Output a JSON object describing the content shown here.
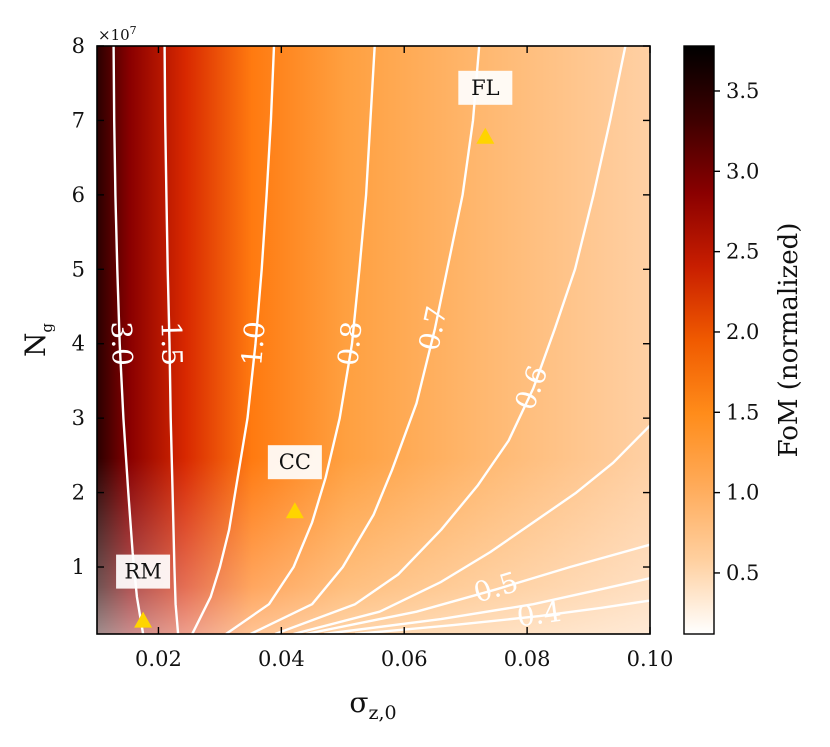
{
  "chart_data": {
    "type": "contour",
    "xlabel": "σ_{z,0}",
    "ylabel": "N_g",
    "y_multiplier_label": "×10^7",
    "xlim": [
      0.01,
      0.1
    ],
    "ylim": [
      0.1,
      8.0
    ],
    "x_ticks": [
      0.02,
      0.04,
      0.06,
      0.08,
      0.1
    ],
    "x_tick_labels": [
      "0.02",
      "0.04",
      "0.06",
      "0.08",
      "0.10"
    ],
    "y_ticks": [
      1,
      2,
      3,
      4,
      5,
      6,
      7,
      8
    ],
    "y_tick_labels": [
      "1",
      "2",
      "3",
      "4",
      "5",
      "6",
      "7",
      "8"
    ],
    "colorbar": {
      "label": "FoM (normalized)",
      "range": [
        0.12,
        3.78
      ],
      "ticks": [
        0.5,
        1.0,
        1.5,
        2.0,
        2.5,
        3.0,
        3.5
      ],
      "tick_labels": [
        "0.5",
        "1.0",
        "1.5",
        "2.0",
        "2.5",
        "3.0",
        "3.5"
      ],
      "colormap": [
        "#ffffff",
        "#ffd0a0",
        "#ffab5a",
        "#ff8c1a",
        "#f05a00",
        "#c81e00",
        "#8a0000",
        "#3d0000",
        "#000000"
      ]
    },
    "contours": [
      {
        "level": 3.0,
        "label": "3.0",
        "points": [
          [
            0.0175,
            0.1
          ],
          [
            0.0165,
            0.6
          ],
          [
            0.0158,
            1.2
          ],
          [
            0.0151,
            2.0
          ],
          [
            0.0143,
            3.0
          ],
          [
            0.0137,
            4.0
          ],
          [
            0.0133,
            5.0
          ],
          [
            0.013,
            6.0
          ],
          [
            0.0128,
            7.0
          ],
          [
            0.0127,
            8.0
          ]
        ]
      },
      {
        "level": 1.5,
        "label": "1.5",
        "points": [
          [
            0.0232,
            0.1
          ],
          [
            0.0228,
            0.5
          ],
          [
            0.0226,
            1.0
          ],
          [
            0.0223,
            2.0
          ],
          [
            0.022,
            3.0
          ],
          [
            0.0218,
            4.0
          ],
          [
            0.0215,
            5.0
          ],
          [
            0.0213,
            6.0
          ],
          [
            0.0211,
            7.0
          ],
          [
            0.021,
            8.0
          ]
        ]
      },
      {
        "level": 1.0,
        "label": "1.0",
        "points": [
          [
            0.0255,
            0.1
          ],
          [
            0.0285,
            0.6
          ],
          [
            0.03,
            1.0
          ],
          [
            0.0315,
            1.5
          ],
          [
            0.0325,
            2.0
          ],
          [
            0.0345,
            3.0
          ],
          [
            0.0358,
            4.0
          ],
          [
            0.0368,
            5.0
          ],
          [
            0.0376,
            6.0
          ],
          [
            0.0383,
            7.0
          ],
          [
            0.0388,
            8.0
          ]
        ]
      },
      {
        "level": 0.8,
        "label": "0.8",
        "points": [
          [
            0.031,
            0.1
          ],
          [
            0.038,
            0.5
          ],
          [
            0.042,
            1.0
          ],
          [
            0.045,
            1.6
          ],
          [
            0.0472,
            2.2
          ],
          [
            0.0495,
            3.0
          ],
          [
            0.0515,
            4.0
          ],
          [
            0.0527,
            5.0
          ],
          [
            0.0538,
            6.0
          ],
          [
            0.0545,
            7.0
          ],
          [
            0.0552,
            8.0
          ]
        ]
      },
      {
        "level": 0.7,
        "label": "0.7",
        "points": [
          [
            0.035,
            0.1
          ],
          [
            0.045,
            0.5
          ],
          [
            0.05,
            1.0
          ],
          [
            0.055,
            1.7
          ],
          [
            0.058,
            2.3
          ],
          [
            0.062,
            3.2
          ],
          [
            0.065,
            4.2
          ],
          [
            0.067,
            5.0
          ],
          [
            0.0695,
            6.0
          ],
          [
            0.0712,
            7.0
          ],
          [
            0.0722,
            8.0
          ]
        ]
      },
      {
        "level": 0.6,
        "label": "0.6",
        "points": [
          [
            0.039,
            0.1
          ],
          [
            0.052,
            0.5
          ],
          [
            0.059,
            0.9
          ],
          [
            0.066,
            1.5
          ],
          [
            0.072,
            2.1
          ],
          [
            0.077,
            2.7
          ],
          [
            0.081,
            3.4
          ],
          [
            0.0845,
            4.2
          ],
          [
            0.0878,
            5.0
          ],
          [
            0.0908,
            6.0
          ],
          [
            0.0935,
            7.0
          ],
          [
            0.096,
            8.0
          ]
        ]
      },
      {
        "level": 0.55,
        "label": "",
        "points": [
          [
            0.042,
            0.1
          ],
          [
            0.056,
            0.4
          ],
          [
            0.066,
            0.8
          ],
          [
            0.074,
            1.2
          ],
          [
            0.081,
            1.6
          ],
          [
            0.088,
            2.0
          ],
          [
            0.094,
            2.4
          ],
          [
            0.1,
            2.9
          ]
        ]
      },
      {
        "level": 0.5,
        "label": "0.5",
        "points": [
          [
            0.044,
            0.1
          ],
          [
            0.062,
            0.4
          ],
          [
            0.075,
            0.7
          ],
          [
            0.087,
            1.0
          ],
          [
            0.1,
            1.3
          ]
        ]
      },
      {
        "level": 0.45,
        "label": "",
        "points": [
          [
            0.047,
            0.1
          ],
          [
            0.066,
            0.3
          ],
          [
            0.081,
            0.5
          ],
          [
            0.092,
            0.7
          ],
          [
            0.1,
            0.85
          ]
        ]
      },
      {
        "level": 0.4,
        "label": "0.4",
        "points": [
          [
            0.052,
            0.1
          ],
          [
            0.068,
            0.22
          ],
          [
            0.082,
            0.34
          ],
          [
            0.092,
            0.45
          ],
          [
            0.1,
            0.55
          ]
        ]
      }
    ],
    "markers": [
      {
        "label": "RM",
        "x": 0.0175,
        "y": 0.28,
        "color": "#ffd400"
      },
      {
        "label": "CC",
        "x": 0.0422,
        "y": 1.75,
        "color": "#ffd400"
      },
      {
        "label": "FL",
        "x": 0.0732,
        "y": 6.78,
        "color": "#ffd400"
      }
    ]
  }
}
